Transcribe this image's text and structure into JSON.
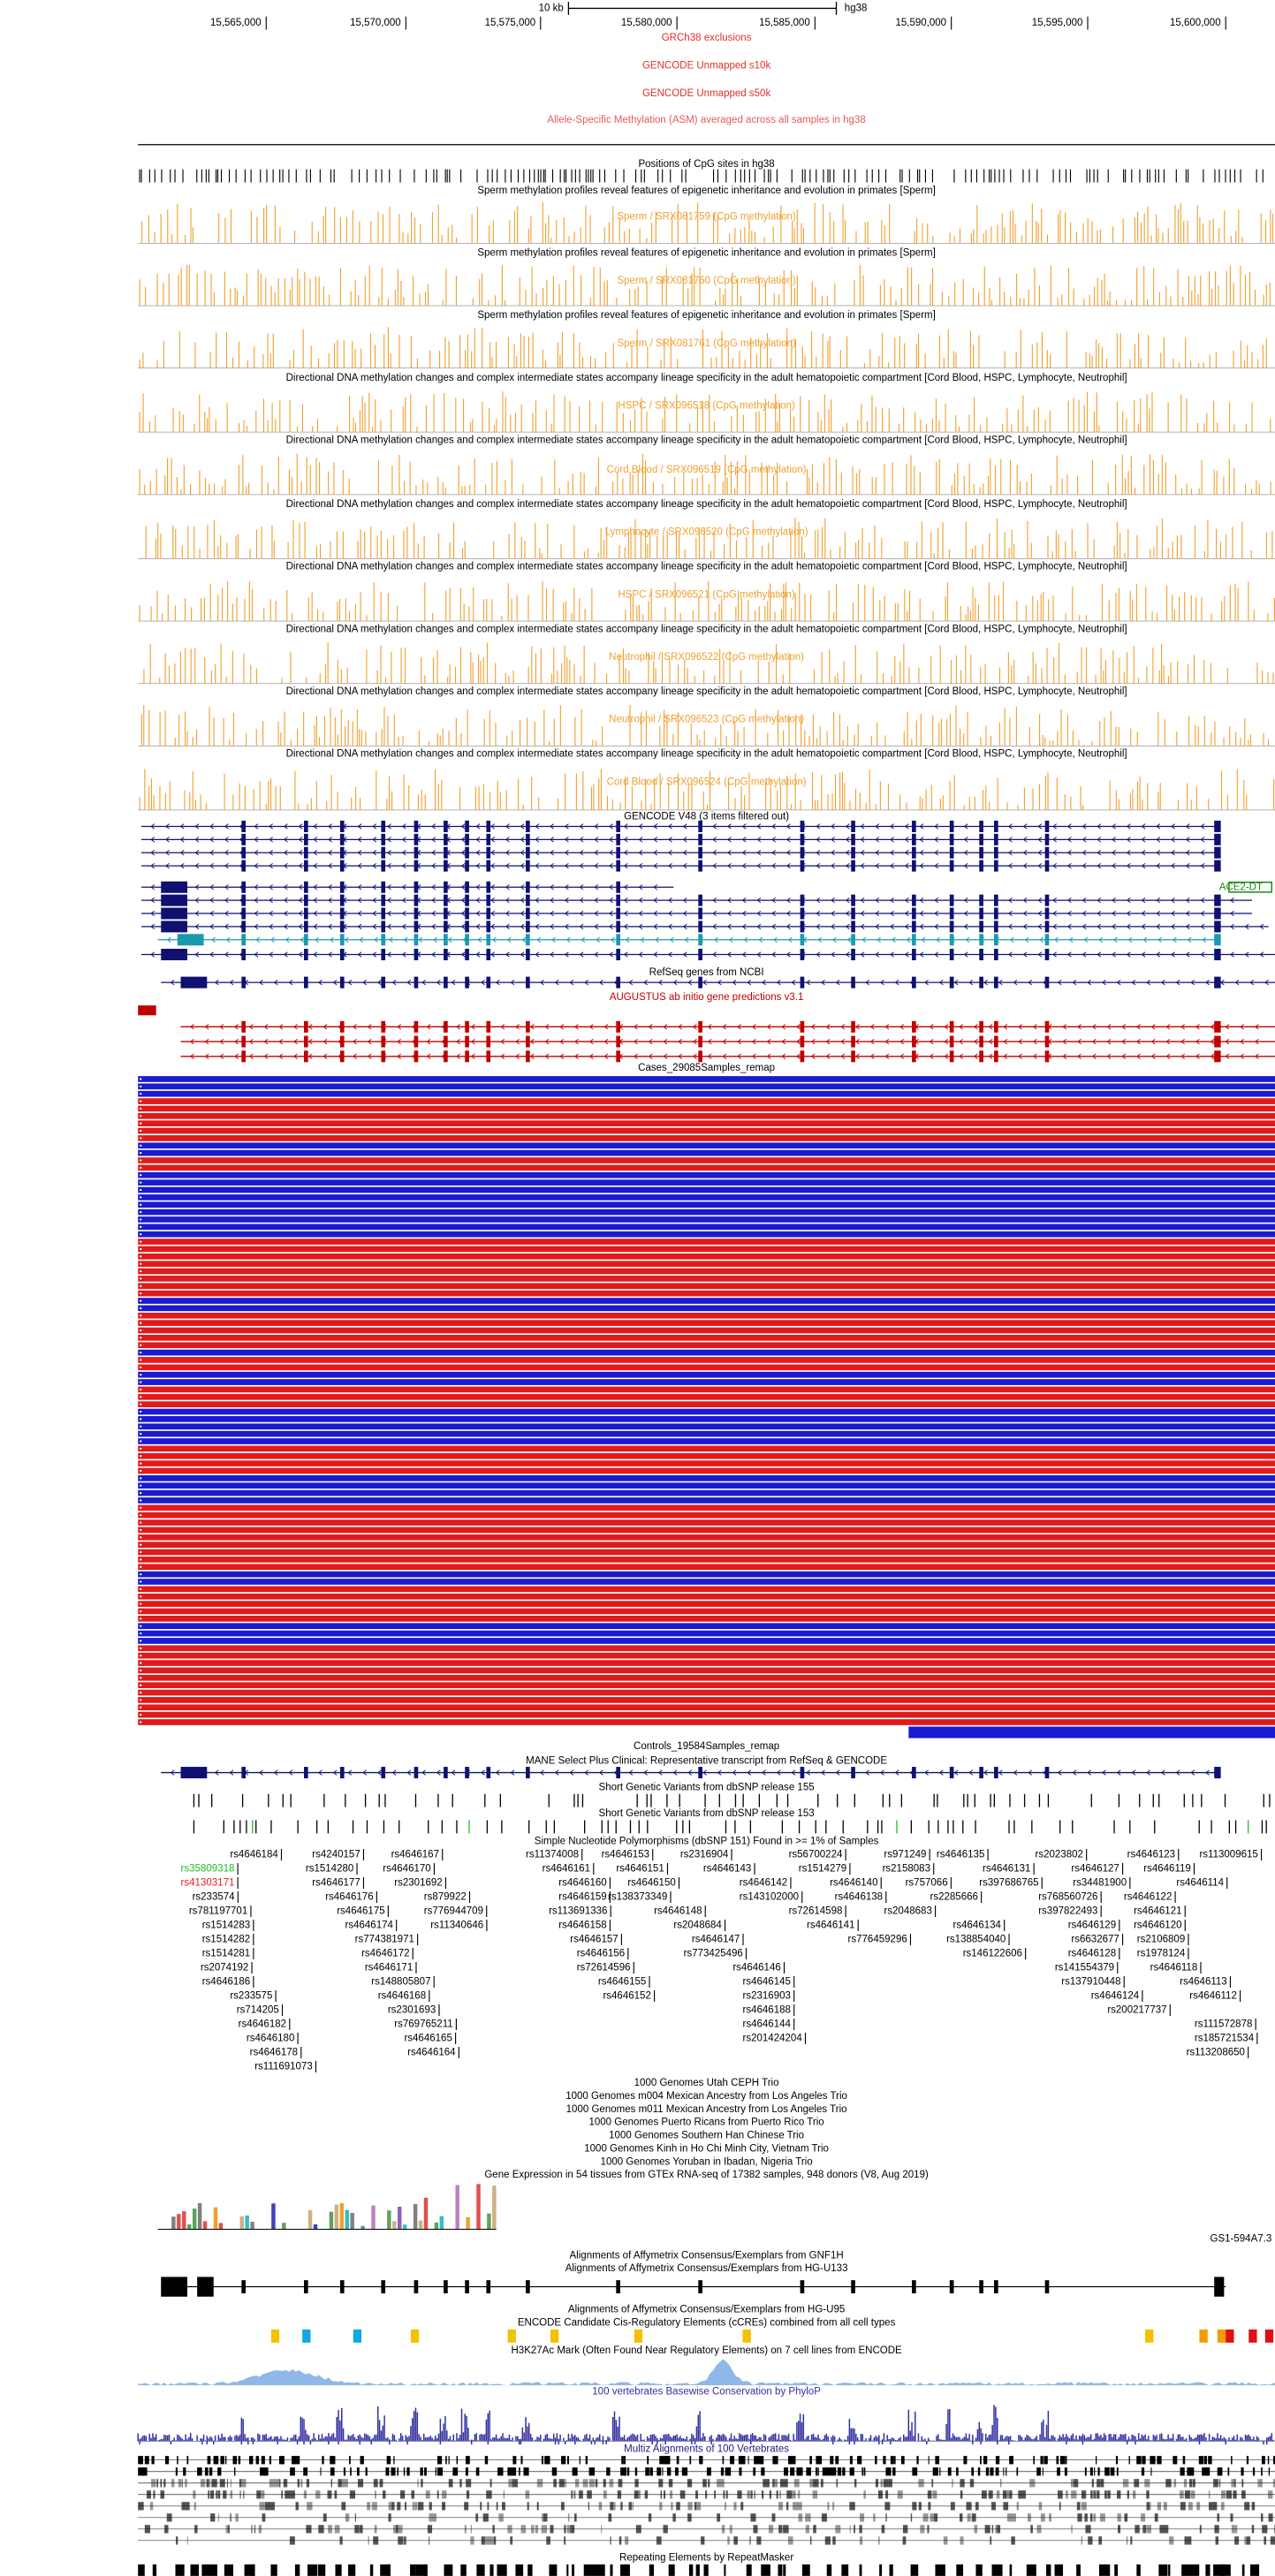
{
  "ruler": {
    "scale": "10 kb",
    "assembly": "hg38",
    "positions": [
      "15,565,000",
      "15,570,000",
      "15,575,000",
      "15,580,000",
      "15,585,000",
      "15,590,000",
      "15,595,000",
      "15,600,000"
    ]
  },
  "tracks": [
    {
      "title": "GRCh38 exclusions",
      "color": "#e0302a"
    },
    {
      "title": "GENCODE Unmapped s10k",
      "color": "#e0302a"
    },
    {
      "title": "GENCODE Unmapped s50k",
      "color": "#e0302a"
    },
    {
      "title": "Allele-Specific Methylation (ASM) averaged across all samples in hg38",
      "color": "#e85a5a"
    },
    {
      "title": "Positions of CpG sites in hg38",
      "color": "#000000"
    },
    {
      "title": "Sperm methylation profiles reveal features of epigenetic inheritance and evolution in primates [Sperm]",
      "color": "#000000"
    },
    {
      "title": "Sperm / SRX081759 (CpG methylation)",
      "color": "#f0a030"
    },
    {
      "title": "Sperm methylation profiles reveal features of epigenetic inheritance and evolution in primates [Sperm]",
      "color": "#000000"
    },
    {
      "title": "Sperm / SRX081760 (CpG methylation)",
      "color": "#f0a030"
    },
    {
      "title": "Sperm methylation profiles reveal features of epigenetic inheritance and evolution in primates [Sperm]",
      "color": "#000000"
    },
    {
      "title": "Sperm / SRX081761 (CpG methylation)",
      "color": "#f0a030"
    },
    {
      "title": "Directional DNA methylation changes and complex intermediate states accompany lineage specificity in the adult hematopoietic compartment [Cord Blood, HSPC, Lymphocyte, Neutrophil]",
      "color": "#000000"
    },
    {
      "title": "HSPC / SRX096518 (CpG methylation)",
      "color": "#f0a030"
    },
    {
      "title": "Directional DNA methylation changes and complex intermediate states accompany lineage specificity in the adult hematopoietic compartment [Cord Blood, HSPC, Lymphocyte, Neutrophil]",
      "color": "#000000"
    },
    {
      "title": "Cord Blood / SRX096519 (CpG methylation)",
      "color": "#f0a030"
    },
    {
      "title": "Directional DNA methylation changes and complex intermediate states accompany lineage specificity in the adult hematopoietic compartment [Cord Blood, HSPC, Lymphocyte, Neutrophil]",
      "color": "#000000"
    },
    {
      "title": "Lymphocyte / SRX096520 (CpG methylation)",
      "color": "#f0a030"
    },
    {
      "title": "Directional DNA methylation changes and complex intermediate states accompany lineage specificity in the adult hematopoietic compartment [Cord Blood, HSPC, Lymphocyte, Neutrophil]",
      "color": "#000000"
    },
    {
      "title": "HSPC / SRX096521 (CpG methylation)",
      "color": "#f0a030"
    },
    {
      "title": "Directional DNA methylation changes and complex intermediate states accompany lineage specificity in the adult hematopoietic compartment [Cord Blood, HSPC, Lymphocyte, Neutrophil]",
      "color": "#000000"
    },
    {
      "title": "Neutrophil / SRX096522 (CpG methylation)",
      "color": "#f0a030"
    },
    {
      "title": "Directional DNA methylation changes and complex intermediate states accompany lineage specificity in the adult hematopoietic compartment [Cord Blood, HSPC, Lymphocyte, Neutrophil]",
      "color": "#000000"
    },
    {
      "title": "Neutrophil / SRX096523 (CpG methylation)",
      "color": "#f0a030"
    },
    {
      "title": "Directional DNA methylation changes and complex intermediate states accompany lineage specificity in the adult hematopoietic compartment [Cord Blood, HSPC, Lymphocyte, Neutrophil]",
      "color": "#000000"
    },
    {
      "title": "Cord Blood / SRX096524 (CpG methylation)",
      "color": "#f0a030"
    },
    {
      "title": "GENCODE V48 (3 items filtered out)",
      "color": "#000000"
    },
    {
      "title": "RefSeq genes from NCBI",
      "color": "#000000"
    },
    {
      "title": "AUGUSTUS ab initio gene predictions v3.1",
      "color": "#c00000"
    },
    {
      "title": "Cases_29085Samples_remap",
      "color": "#000000"
    },
    {
      "title": "Controls_19584Samples_remap",
      "color": "#000000"
    },
    {
      "title": "MANE Select Plus Clinical: Representative transcript from RefSeq & GENCODE",
      "color": "#000000"
    },
    {
      "title": "Short Genetic Variants from dbSNP release 155",
      "color": "#000000"
    },
    {
      "title": "Short Genetic Variants from dbSNP release 153",
      "color": "#000000"
    },
    {
      "title": "Simple Nucleotide Polymorphisms (dbSNP 151) Found in >= 1% of Samples",
      "color": "#000000"
    },
    {
      "title": "1000 Genomes Utah CEPH Trio",
      "color": "#000000"
    },
    {
      "title": "1000 Genomes m004 Mexican Ancestry from Los Angeles Trio",
      "color": "#000000"
    },
    {
      "title": "1000 Genomes m011 Mexican Ancestry from Los Angeles Trio",
      "color": "#000000"
    },
    {
      "title": "1000 Genomes Puerto Ricans from Puerto Rico Trio",
      "color": "#000000"
    },
    {
      "title": "1000 Genomes Southern Han Chinese Trio",
      "color": "#000000"
    },
    {
      "title": "1000 Genomes Kinh in Ho Chi Minh City, Vietnam Trio",
      "color": "#000000"
    },
    {
      "title": "1000 Genomes Yoruban in Ibadan, Nigeria Trio",
      "color": "#000000"
    },
    {
      "title": "Gene Expression in 54 tissues from GTEx RNA-seq of 17382 samples, 948 donors (V8, Aug 2019)",
      "color": "#000000"
    },
    {
      "title": "Alignments of Affymetrix Consensus/Exemplars from GNF1H",
      "color": "#000000"
    },
    {
      "title": "Alignments of Affymetrix Consensus/Exemplars from HG-U133",
      "color": "#000000"
    },
    {
      "title": "Alignments of Affymetrix Consensus/Exemplars from HG-U95",
      "color": "#000000"
    },
    {
      "title": "ENCODE Candidate Cis-Regulatory Elements (cCREs) combined from all cell types",
      "color": "#000000"
    },
    {
      "title": "H3K27Ac Mark (Often Found Near Regulatory Elements) on 7 cell lines from ENCODE",
      "color": "#000000"
    },
    {
      "title": "100 vertebrates Basewise Conservation by PhyloP",
      "color": "#3030a0"
    },
    {
      "title": "Multiz Alignments of 100 Vertebrates",
      "color": "#202080"
    },
    {
      "title": "Repeating Elements by RepeatMasker",
      "color": "#000000"
    }
  ],
  "gene_label": {
    "text": "ACE2-DT",
    "color": "#1a8a1a"
  },
  "gtex_label": "GS1-594A7.3",
  "snp_labels": [
    {
      "id": "rs4646184"
    },
    {
      "id": "rs4240157"
    },
    {
      "id": "rs4646167"
    },
    {
      "id": "rs11374008"
    },
    {
      "id": "rs4646153"
    },
    {
      "id": "rs2316904"
    },
    {
      "id": "rs56700224"
    },
    {
      "id": "rs971249"
    },
    {
      "id": "rs4646135"
    },
    {
      "id": "rs2023802"
    },
    {
      "id": "rs4646123"
    },
    {
      "id": "rs113009615"
    },
    {
      "id": "rs35809318",
      "color": "#22bb22"
    },
    {
      "id": "rs1514280"
    },
    {
      "id": "rs4646170"
    },
    {
      "id": "rs4646161"
    },
    {
      "id": "rs4646151"
    },
    {
      "id": "rs4646143"
    },
    {
      "id": "rs1514279"
    },
    {
      "id": "rs2158083"
    },
    {
      "id": "rs4646131"
    },
    {
      "id": "rs4646127"
    },
    {
      "id": "rs4646119"
    },
    {
      "id": "rs41303171",
      "color": "#e02020"
    },
    {
      "id": "rs4646177"
    },
    {
      "id": "rs2301692"
    },
    {
      "id": "rs4646160"
    },
    {
      "id": "rs4646150"
    },
    {
      "id": "rs4646142"
    },
    {
      "id": "rs4646140"
    },
    {
      "id": "rs757066"
    },
    {
      "id": "rs397686765"
    },
    {
      "id": "rs34481900"
    },
    {
      "id": "rs4646114"
    },
    {
      "id": "rs233574"
    },
    {
      "id": "rs4646176"
    },
    {
      "id": "rs879922"
    },
    {
      "id": "rs4646159"
    },
    {
      "id": "rs138373349"
    },
    {
      "id": "rs143102000"
    },
    {
      "id": "rs4646138"
    },
    {
      "id": "rs2285666"
    },
    {
      "id": "rs768560726"
    },
    {
      "id": "rs4646122"
    },
    {
      "id": "rs781197701"
    },
    {
      "id": "rs4646175"
    },
    {
      "id": "rs776944709"
    },
    {
      "id": "rs113691336"
    },
    {
      "id": "rs4646148"
    },
    {
      "id": "rs72614598"
    },
    {
      "id": "rs2048683"
    },
    {
      "id": "rs397822493"
    },
    {
      "id": "rs4646121"
    },
    {
      "id": "rs1514283"
    },
    {
      "id": "rs4646174"
    },
    {
      "id": "rs11340646"
    },
    {
      "id": "rs4646158"
    },
    {
      "id": "rs2048684"
    },
    {
      "id": "rs4646141"
    },
    {
      "id": "rs4646134"
    },
    {
      "id": "rs4646129"
    },
    {
      "id": "rs4646120"
    },
    {
      "id": "rs1514282"
    },
    {
      "id": "rs774381971"
    },
    {
      "id": "rs4646157"
    },
    {
      "id": "rs4646147"
    },
    {
      "id": "rs776459296"
    },
    {
      "id": "rs138854040"
    },
    {
      "id": "rs6632677"
    },
    {
      "id": "rs2106809"
    },
    {
      "id": "rs1514281"
    },
    {
      "id": "rs4646172"
    },
    {
      "id": "rs4646156"
    },
    {
      "id": "rs773425496"
    },
    {
      "id": "rs146122606"
    },
    {
      "id": "rs4646128"
    },
    {
      "id": "rs1978124"
    },
    {
      "id": "rs2074192"
    },
    {
      "id": "rs4646171"
    },
    {
      "id": "rs72614596"
    },
    {
      "id": "rs4646146"
    },
    {
      "id": "rs141554379"
    },
    {
      "id": "rs4646118"
    },
    {
      "id": "rs4646186"
    },
    {
      "id": "rs148805807"
    },
    {
      "id": "rs4646155"
    },
    {
      "id": "rs4646145"
    },
    {
      "id": "rs137910448"
    },
    {
      "id": "rs4646113"
    },
    {
      "id": "rs233575"
    },
    {
      "id": "rs4646168"
    },
    {
      "id": "rs4646152"
    },
    {
      "id": "rs2316903"
    },
    {
      "id": "rs4646124"
    },
    {
      "id": "rs4646112"
    },
    {
      "id": "rs714205"
    },
    {
      "id": "rs2301693"
    },
    {
      "id": "rs4646188"
    },
    {
      "id": "rs200217737"
    },
    {
      "id": "rs4646182"
    },
    {
      "id": "rs769765211"
    },
    {
      "id": "rs4646144"
    },
    {
      "id": "rs111572878"
    },
    {
      "id": "rs4646180"
    },
    {
      "id": "rs4646165"
    },
    {
      "id": "rs201424204"
    },
    {
      "id": "rs185721534"
    },
    {
      "id": "rs4646178"
    },
    {
      "id": "rs4646164"
    },
    {
      "id": "rs113208650"
    },
    {
      "id": "rs111691073"
    }
  ]
}
